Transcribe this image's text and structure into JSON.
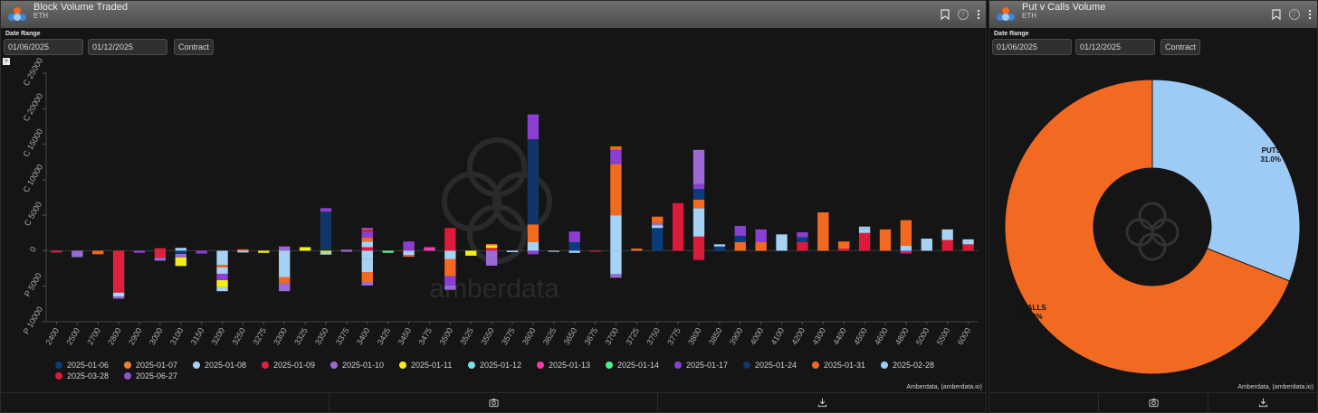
{
  "left": {
    "title": "Block Volume Traded",
    "subtitle": "ETH",
    "date_range_label": "Date Range",
    "start_date": "01/06/2025",
    "end_date": "01/12/2025",
    "mode_button": "Contract",
    "toggle_glyph": ">",
    "credit": "Amberdata, (amberdata.io)",
    "watermark": "amberdata"
  },
  "right": {
    "title": "Put v Calls Volume",
    "subtitle": "ETH",
    "date_range_label": "Date Range",
    "start_date": "01/06/2025",
    "end_date": "01/12/2025",
    "mode_button": "Contract",
    "credit": "Amberdata, (amberdata.io)"
  },
  "icons": {
    "header": [
      "bookmark-icon",
      "info-icon",
      "more-vert-icon"
    ],
    "footer": [
      "",
      "camera-icon",
      "download-icon"
    ]
  },
  "chart_data": [
    {
      "type": "bar",
      "stacked": true,
      "categories": [
        "2400",
        "2500",
        "2700",
        "2800",
        "2900",
        "3000",
        "3100",
        "3150",
        "3200",
        "3250",
        "3275",
        "3300",
        "3325",
        "3350",
        "3375",
        "3400",
        "3425",
        "3450",
        "3475",
        "3500",
        "3525",
        "3550",
        "3575",
        "3600",
        "3625",
        "3650",
        "3675",
        "3700",
        "3725",
        "3750",
        "3775",
        "3800",
        "3850",
        "3900",
        "4000",
        "4100",
        "4200",
        "4300",
        "4400",
        "4500",
        "4600",
        "4800",
        "5000",
        "5500",
        "6000"
      ],
      "yticks": [
        {
          "label": "C 25000",
          "value": 25000
        },
        {
          "label": "C 20000",
          "value": 20000
        },
        {
          "label": "C 15000",
          "value": 15000
        },
        {
          "label": "C 10000",
          "value": 10000
        },
        {
          "label": "C 5000",
          "value": 5000
        },
        {
          "label": "0",
          "value": 0
        },
        {
          "label": "P 5000",
          "value": -5000
        },
        {
          "label": "P 10000",
          "value": -10000
        }
      ],
      "ylim": [
        -10000,
        25000
      ],
      "legend_position": "bottom",
      "legend": [
        {
          "name": "2025-01-06",
          "color": "#0a3c7c"
        },
        {
          "name": "2025-01-07",
          "color": "#f07f3c"
        },
        {
          "name": "2025-01-08",
          "color": "#a7d2f4"
        },
        {
          "name": "2025-01-09",
          "color": "#e0213e"
        },
        {
          "name": "2025-01-10",
          "color": "#9b6ad4"
        },
        {
          "name": "2025-01-11",
          "color": "#f2ee18"
        },
        {
          "name": "2025-01-12",
          "color": "#7de0ea"
        },
        {
          "name": "2025-01-13",
          "color": "#ef3ca8"
        },
        {
          "name": "2025-01-14",
          "color": "#4ef08c"
        },
        {
          "name": "2025-01-17",
          "color": "#8a3fd2"
        },
        {
          "name": "2025-01-24",
          "color": "#123466"
        },
        {
          "name": "2025-01-31",
          "color": "#f26a22"
        },
        {
          "name": "2025-02-28",
          "color": "#9ccdf8"
        },
        {
          "name": "2025-03-28",
          "color": "#dc1a3a"
        },
        {
          "name": "2025-06-27",
          "color": "#8a56c8"
        }
      ],
      "stacks": [
        {
          "category": "2400",
          "segments": [
            {
              "s": 3,
              "v": -250
            }
          ]
        },
        {
          "category": "2500",
          "segments": [
            {
              "s": 4,
              "v": -900
            }
          ]
        },
        {
          "category": "2700",
          "segments": [
            {
              "s": 11,
              "v": -500
            }
          ]
        },
        {
          "category": "2800",
          "segments": [
            {
              "s": 3,
              "v": -5900
            },
            {
              "s": 2,
              "v": -550
            },
            {
              "s": 4,
              "v": -300
            }
          ]
        },
        {
          "category": "2900",
          "segments": [
            {
              "s": 9,
              "v": -300
            }
          ]
        },
        {
          "category": "3000",
          "segments": [
            {
              "s": 3,
              "v": 350
            },
            {
              "s": 3,
              "v": -1000
            },
            {
              "s": 4,
              "v": -400
            }
          ]
        },
        {
          "category": "3100",
          "segments": [
            {
              "s": 2,
              "v": 400
            },
            {
              "s": 0,
              "v": -450
            },
            {
              "s": 4,
              "v": -500
            },
            {
              "s": 5,
              "v": -1200
            }
          ]
        },
        {
          "category": "3150",
          "segments": [
            {
              "s": 9,
              "v": -400
            }
          ]
        },
        {
          "category": "3200",
          "segments": [
            {
              "s": 2,
              "v": -2000
            },
            {
              "s": 11,
              "v": -350
            },
            {
              "s": 2,
              "v": -900
            },
            {
              "s": 9,
              "v": -900
            },
            {
              "s": 5,
              "v": -1000
            },
            {
              "s": 2,
              "v": -550
            }
          ]
        },
        {
          "category": "3250",
          "segments": [
            {
              "s": 11,
              "v": 200
            },
            {
              "s": 2,
              "v": -250
            }
          ]
        },
        {
          "category": "3275",
          "segments": [
            {
              "s": 5,
              "v": -300
            }
          ]
        },
        {
          "category": "3300",
          "segments": [
            {
              "s": 4,
              "v": 600
            },
            {
              "s": 2,
              "v": -3700
            },
            {
              "s": 11,
              "v": -900
            },
            {
              "s": 4,
              "v": -1100
            }
          ]
        },
        {
          "category": "3325",
          "segments": [
            {
              "s": 5,
              "v": 500
            }
          ]
        },
        {
          "category": "3350",
          "segments": [
            {
              "s": 10,
              "v": 5500
            },
            {
              "s": 9,
              "v": 500
            },
            {
              "s": 5,
              "v": -250
            },
            {
              "s": 2,
              "v": -300
            }
          ]
        },
        {
          "category": "3375",
          "segments": [
            {
              "s": 4,
              "v": 150
            },
            {
              "s": 4,
              "v": -150
            }
          ]
        },
        {
          "category": "3400",
          "segments": [
            {
              "s": 13,
              "v": 500
            },
            {
              "s": 2,
              "v": 800
            },
            {
              "s": 11,
              "v": 550
            },
            {
              "s": 9,
              "v": 850
            },
            {
              "s": 13,
              "v": 300
            },
            {
              "s": 4,
              "v": 200
            },
            {
              "s": 2,
              "v": -1200
            },
            {
              "s": 2,
              "v": -1800
            },
            {
              "s": 11,
              "v": -1400
            },
            {
              "s": 4,
              "v": -500
            }
          ]
        },
        {
          "category": "3425",
          "segments": [
            {
              "s": 8,
              "v": -300
            }
          ]
        },
        {
          "category": "3450",
          "segments": [
            {
              "s": 9,
              "v": 1300
            },
            {
              "s": 2,
              "v": -600
            },
            {
              "s": 11,
              "v": -250
            }
          ]
        },
        {
          "category": "3475",
          "segments": [
            {
              "s": 7,
              "v": 500
            }
          ]
        },
        {
          "category": "3500",
          "segments": [
            {
              "s": 13,
              "v": 3200
            },
            {
              "s": 2,
              "v": -1200
            },
            {
              "s": 11,
              "v": -2400
            },
            {
              "s": 9,
              "v": -1300
            },
            {
              "s": 4,
              "v": -600
            }
          ]
        },
        {
          "category": "3525",
          "segments": [
            {
              "s": 5,
              "v": -700
            }
          ]
        },
        {
          "category": "3550",
          "segments": [
            {
              "s": 3,
              "v": 400
            },
            {
              "s": 5,
              "v": 350
            },
            {
              "s": 11,
              "v": 200
            },
            {
              "s": 4,
              "v": -2100
            }
          ]
        },
        {
          "category": "3575",
          "segments": [
            {
              "s": 2,
              "v": -200
            }
          ]
        },
        {
          "category": "3600",
          "segments": [
            {
              "s": 2,
              "v": 1200
            },
            {
              "s": 11,
              "v": 2500
            },
            {
              "s": 10,
              "v": 12000
            },
            {
              "s": 9,
              "v": 3500
            },
            {
              "s": 9,
              "v": -500
            }
          ]
        },
        {
          "category": "3625",
          "segments": [
            {
              "s": 2,
              "v": -150
            }
          ]
        },
        {
          "category": "3650",
          "segments": [
            {
              "s": 0,
              "v": 1200
            },
            {
              "s": 9,
              "v": 1500
            },
            {
              "s": 2,
              "v": -300
            }
          ]
        },
        {
          "category": "3675",
          "segments": [
            {
              "s": 13,
              "v": -150
            }
          ]
        },
        {
          "category": "3700",
          "segments": [
            {
              "s": 2,
              "v": 5000
            },
            {
              "s": 11,
              "v": 7200
            },
            {
              "s": 9,
              "v": 2000
            },
            {
              "s": 11,
              "v": 500
            },
            {
              "s": 2,
              "v": -3300
            },
            {
              "s": 4,
              "v": -500
            }
          ]
        },
        {
          "category": "3725",
          "segments": [
            {
              "s": 11,
              "v": 300
            }
          ]
        },
        {
          "category": "3750",
          "segments": [
            {
              "s": 0,
              "v": 3200
            },
            {
              "s": 2,
              "v": 400
            },
            {
              "s": 4,
              "v": 300
            },
            {
              "s": 11,
              "v": 900
            }
          ]
        },
        {
          "category": "3775",
          "segments": [
            {
              "s": 13,
              "v": 6700
            }
          ]
        },
        {
          "category": "3800",
          "segments": [
            {
              "s": 13,
              "v": 2000
            },
            {
              "s": 2,
              "v": 4000
            },
            {
              "s": 11,
              "v": 1200
            },
            {
              "s": 0,
              "v": 1500
            },
            {
              "s": 9,
              "v": 700
            },
            {
              "s": 4,
              "v": 4800
            },
            {
              "s": 13,
              "v": -1300
            }
          ]
        },
        {
          "category": "3850",
          "segments": [
            {
              "s": 0,
              "v": 600
            },
            {
              "s": 2,
              "v": 300
            }
          ]
        },
        {
          "category": "3900",
          "segments": [
            {
              "s": 11,
              "v": 1200
            },
            {
              "s": 0,
              "v": 900
            },
            {
              "s": 9,
              "v": 1400
            }
          ]
        },
        {
          "category": "4000",
          "segments": [
            {
              "s": 11,
              "v": 1200
            },
            {
              "s": 9,
              "v": 1800
            }
          ]
        },
        {
          "category": "4100",
          "segments": [
            {
              "s": 2,
              "v": 2300
            }
          ]
        },
        {
          "category": "4200",
          "segments": [
            {
              "s": 13,
              "v": 1200
            },
            {
              "s": 0,
              "v": 700
            },
            {
              "s": 9,
              "v": 700
            }
          ]
        },
        {
          "category": "4300",
          "segments": [
            {
              "s": 11,
              "v": 5400
            }
          ]
        },
        {
          "category": "4400",
          "segments": [
            {
              "s": 13,
              "v": 300
            },
            {
              "s": 11,
              "v": 1000
            }
          ]
        },
        {
          "category": "4500",
          "segments": [
            {
              "s": 13,
              "v": 2500
            },
            {
              "s": 2,
              "v": 500
            },
            {
              "s": 12,
              "v": 400
            }
          ]
        },
        {
          "category": "4600",
          "segments": [
            {
              "s": 11,
              "v": 3000
            }
          ]
        },
        {
          "category": "4800",
          "segments": [
            {
              "s": 2,
              "v": 700
            },
            {
              "s": 11,
              "v": 3600
            },
            {
              "s": 9,
              "v": -200
            },
            {
              "s": 13,
              "v": -200
            }
          ]
        },
        {
          "category": "5000",
          "segments": [
            {
              "s": 2,
              "v": 1700
            }
          ]
        },
        {
          "category": "5500",
          "segments": [
            {
              "s": 13,
              "v": 1500
            },
            {
              "s": 2,
              "v": 1500
            }
          ]
        },
        {
          "category": "6000",
          "segments": [
            {
              "s": 13,
              "v": 900
            },
            {
              "s": 2,
              "v": 700
            }
          ]
        }
      ]
    },
    {
      "type": "pie",
      "donut": true,
      "slices": [
        {
          "label": "PUTS",
          "pct_label": "31.0%",
          "value": 31.0,
          "color": "#9dcbf6"
        },
        {
          "label": "CALLS",
          "pct_label": "69.0%",
          "value": 69.0,
          "color": "#f26a22"
        }
      ]
    }
  ]
}
